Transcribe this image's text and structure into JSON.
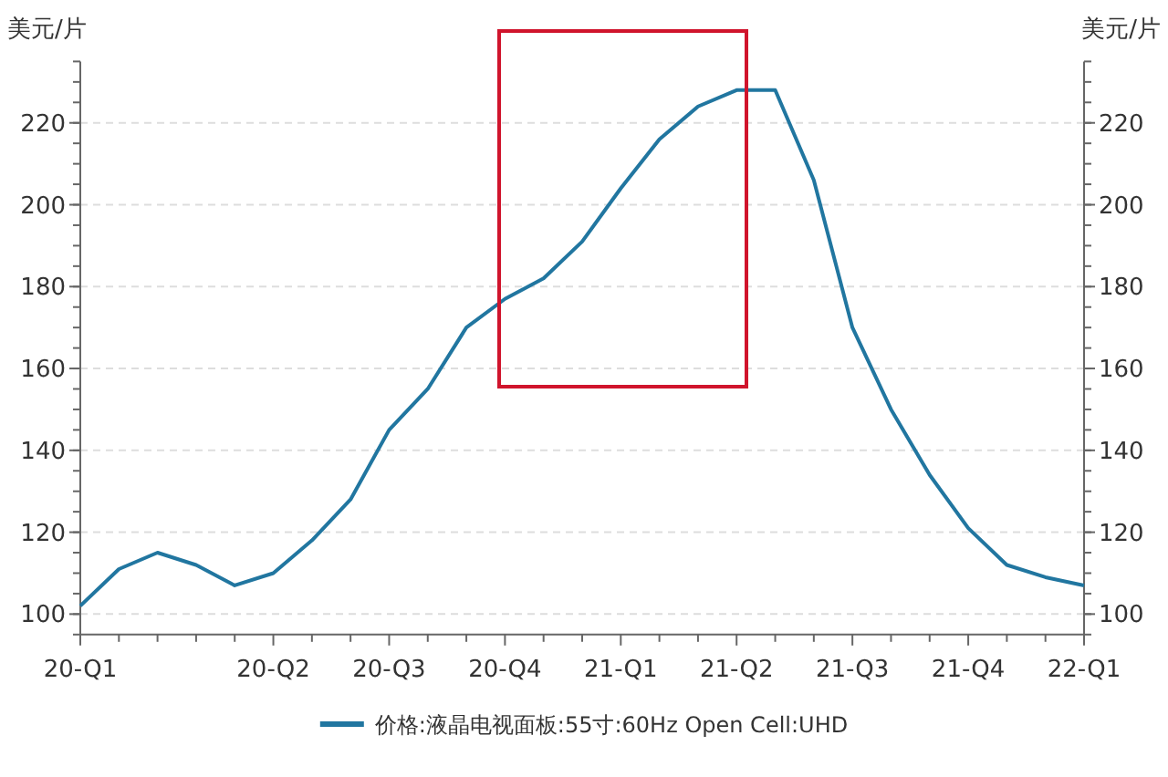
{
  "chart_data": {
    "type": "line",
    "categories": [
      "20-Q1",
      null,
      null,
      null,
      null,
      "20-Q2",
      null,
      null,
      "20-Q3",
      null,
      null,
      "20-Q4",
      null,
      null,
      "21-Q1",
      null,
      null,
      "21-Q2",
      null,
      null,
      "21-Q3",
      null,
      null,
      "21-Q4",
      null,
      null,
      "22-Q1"
    ],
    "series": [
      {
        "name": "价格:液晶电视面板:55寸:60Hz Open Cell:UHD",
        "color": "#2176a0",
        "values": [
          102,
          111,
          115,
          112,
          107,
          110,
          118,
          128,
          145,
          155,
          170,
          177,
          182,
          191,
          204,
          216,
          224,
          228,
          228,
          206,
          170,
          150,
          134,
          121,
          112,
          109,
          107
        ]
      }
    ],
    "ylabel": "美元/片",
    "y2label": "美元/片",
    "ylim": [
      95,
      235
    ],
    "yticks": [
      100,
      120,
      140,
      160,
      180,
      200,
      220
    ],
    "y2lim": [
      95,
      235
    ],
    "y2ticks": [
      100,
      120,
      140,
      160,
      180,
      200,
      220
    ],
    "grid": "y",
    "legend": "bottom",
    "line_style": "solid",
    "marker": "none"
  }
}
